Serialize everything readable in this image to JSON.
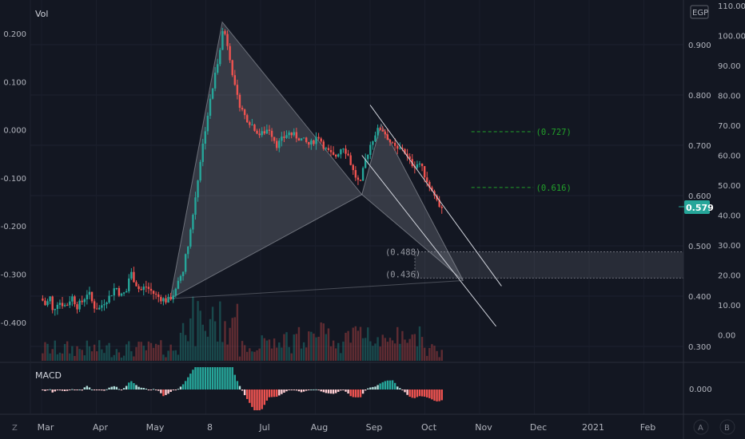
{
  "price_badge": "0.579",
  "currency_label": "EGP",
  "indicators": {
    "volume_label": "Vol",
    "macd_label": "MACD"
  },
  "corner_buttons": {
    "bottom_left": "Z",
    "auto": "A",
    "log": "B"
  },
  "zone_labels": [
    "(0.488)",
    "(0.436)"
  ],
  "fib_labels": [
    "(0.727)",
    "(0.616)"
  ],
  "colors": {
    "up": "#26a69a",
    "down": "#ef5350",
    "bg": "#131722",
    "fib": "#22a12a",
    "badge": "#26a69a"
  },
  "chart_data": {
    "type": "candlestick",
    "x_ticks": [
      "Mar",
      "Apr",
      "May",
      "8",
      "Jul",
      "Aug",
      "Sep",
      "Oct",
      "Nov",
      "Dec",
      "2021",
      "Feb"
    ],
    "price_axis": {
      "ticks": [
        "0.900",
        "0.800",
        "0.700",
        "0.600",
        "0.500",
        "0.400",
        "0.300"
      ],
      "range": [
        0.29,
        0.99
      ],
      "current": 0.579
    },
    "outer_axis": {
      "ticks": [
        "110.00",
        "100.00",
        "90.00",
        "80.00",
        "70.00",
        "60.00",
        "50.00",
        "40.00",
        "30.00",
        "20.00",
        "10.00",
        "0.00"
      ]
    },
    "left_axis": {
      "ticks": [
        "0.200",
        "0.100",
        "0.000",
        "-0.100",
        "-0.200",
        "-0.300",
        "-0.400"
      ]
    },
    "macd_axis": {
      "ticks": [
        "0.000"
      ]
    },
    "price_path": [
      [
        0,
        0.395
      ],
      [
        0.08,
        0.38
      ],
      [
        0.15,
        0.4
      ],
      [
        0.2,
        0.37
      ],
      [
        0.3,
        0.39
      ],
      [
        0.45,
        0.38
      ],
      [
        0.55,
        0.4
      ],
      [
        0.65,
        0.38
      ],
      [
        0.75,
        0.39
      ],
      [
        0.85,
        0.41
      ],
      [
        0.95,
        0.38
      ],
      [
        1.05,
        0.375
      ],
      [
        1.15,
        0.39
      ],
      [
        1.25,
        0.4
      ],
      [
        1.35,
        0.42
      ],
      [
        1.45,
        0.4
      ],
      [
        1.55,
        0.41
      ],
      [
        1.62,
        0.45
      ],
      [
        1.7,
        0.43
      ],
      [
        1.8,
        0.41
      ],
      [
        1.9,
        0.42
      ],
      [
        2.0,
        0.41
      ],
      [
        2.1,
        0.4
      ],
      [
        2.2,
        0.395
      ],
      [
        2.3,
        0.39
      ],
      [
        2.45,
        0.41
      ],
      [
        2.6,
        0.46
      ],
      [
        2.75,
        0.55
      ],
      [
        2.9,
        0.67
      ],
      [
        3.0,
        0.74
      ],
      [
        3.1,
        0.8
      ],
      [
        3.22,
        0.87
      ],
      [
        3.32,
        0.935
      ],
      [
        3.42,
        0.89
      ],
      [
        3.55,
        0.8
      ],
      [
        3.7,
        0.76
      ],
      [
        3.85,
        0.74
      ],
      [
        4.0,
        0.72
      ],
      [
        4.15,
        0.735
      ],
      [
        4.3,
        0.7
      ],
      [
        4.5,
        0.725
      ],
      [
        4.7,
        0.715
      ],
      [
        4.9,
        0.7
      ],
      [
        5.05,
        0.72
      ],
      [
        5.2,
        0.69
      ],
      [
        5.35,
        0.675
      ],
      [
        5.5,
        0.7
      ],
      [
        5.6,
        0.68
      ],
      [
        5.7,
        0.645
      ],
      [
        5.82,
        0.62
      ],
      [
        5.9,
        0.665
      ],
      [
        6.0,
        0.7
      ],
      [
        6.1,
        0.725
      ],
      [
        6.2,
        0.735
      ],
      [
        6.3,
        0.72
      ],
      [
        6.4,
        0.7
      ],
      [
        6.5,
        0.69
      ],
      [
        6.6,
        0.695
      ],
      [
        6.7,
        0.67
      ],
      [
        6.8,
        0.66
      ],
      [
        6.9,
        0.665
      ],
      [
        7.0,
        0.64
      ],
      [
        7.1,
        0.615
      ],
      [
        7.2,
        0.595
      ],
      [
        7.27,
        0.58
      ],
      [
        7.33,
        0.579
      ]
    ],
    "harmonic_pattern": {
      "X": [
        2.35,
        0.395
      ],
      "A": [
        3.3,
        0.945
      ],
      "B": [
        5.85,
        0.602
      ],
      "C": [
        6.2,
        0.742
      ],
      "D": [
        7.7,
        0.431
      ]
    },
    "channel_lines": [
      {
        "from": [
          6.0,
          0.78
        ],
        "to": [
          8.4,
          0.42
        ]
      },
      {
        "from": [
          5.85,
          0.68
        ],
        "to": [
          8.3,
          0.34
        ]
      }
    ],
    "zone": {
      "from_x": 6.35,
      "top": 0.488,
      "bottom": 0.436
    },
    "fib_levels": [
      0.727,
      0.616
    ]
  }
}
